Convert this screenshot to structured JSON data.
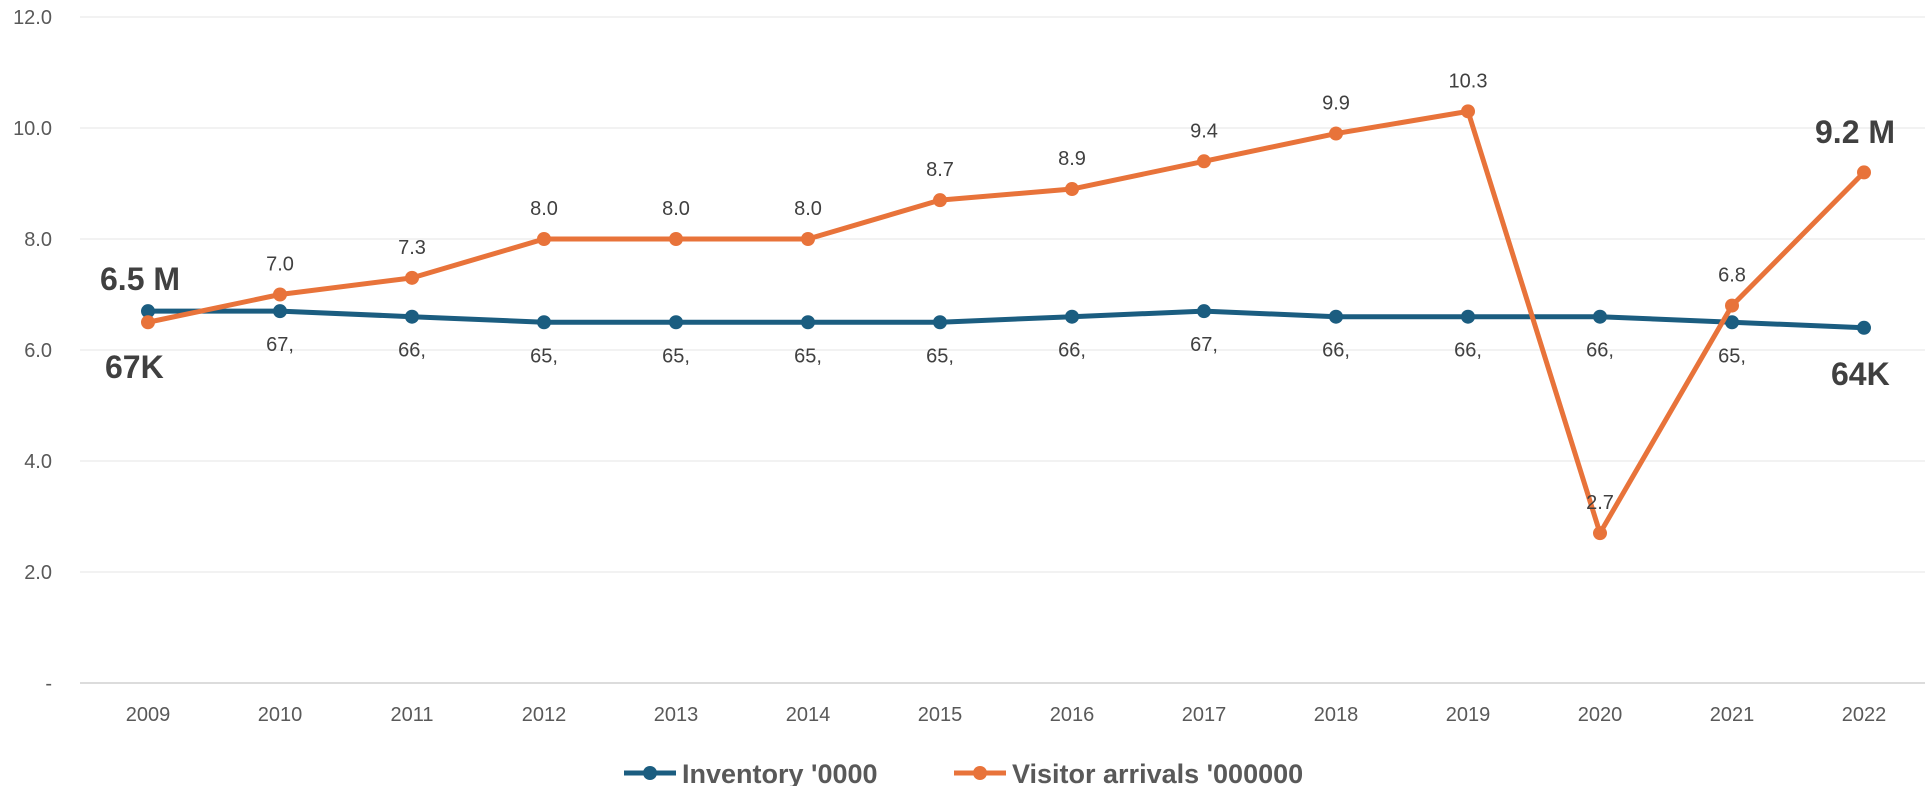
{
  "chart_data": {
    "type": "line",
    "categories": [
      "2009",
      "2010",
      "2011",
      "2012",
      "2013",
      "2014",
      "2015",
      "2016",
      "2017",
      "2018",
      "2019",
      "2020",
      "2021",
      "2022"
    ],
    "y_ticks": [
      "-",
      "2.0",
      "4.0",
      "6.0",
      "8.0",
      "10.0",
      "12.0"
    ],
    "ylim": [
      0,
      12
    ],
    "grid": true,
    "legend_position": "bottom",
    "series": [
      {
        "name": "Inventory '0000",
        "color": "#1b5d80",
        "values": [
          6.7,
          6.7,
          6.6,
          6.5,
          6.5,
          6.5,
          6.5,
          6.6,
          6.7,
          6.6,
          6.6,
          6.6,
          6.5,
          6.4
        ],
        "labels": [
          "",
          "67,",
          "66,",
          "65,",
          "65,",
          "65,",
          "65,",
          "66,",
          "67,",
          "66,",
          "66,",
          "66,",
          "65,",
          ""
        ],
        "start_callout": "67K",
        "end_callout": "64K"
      },
      {
        "name": "Visitor arrivals '000000",
        "color": "#e8733a",
        "values": [
          6.5,
          7.0,
          7.3,
          8.0,
          8.0,
          8.0,
          8.7,
          8.9,
          9.4,
          9.9,
          10.3,
          2.7,
          6.8,
          9.2
        ],
        "labels": [
          "",
          "7.0",
          "7.3",
          "8.0",
          "8.0",
          "8.0",
          "8.7",
          "8.9",
          "9.4",
          "9.9",
          "10.3",
          "2.7",
          "6.8",
          ""
        ],
        "start_callout": "6.5 M",
        "end_callout": "9.2 M"
      }
    ]
  }
}
